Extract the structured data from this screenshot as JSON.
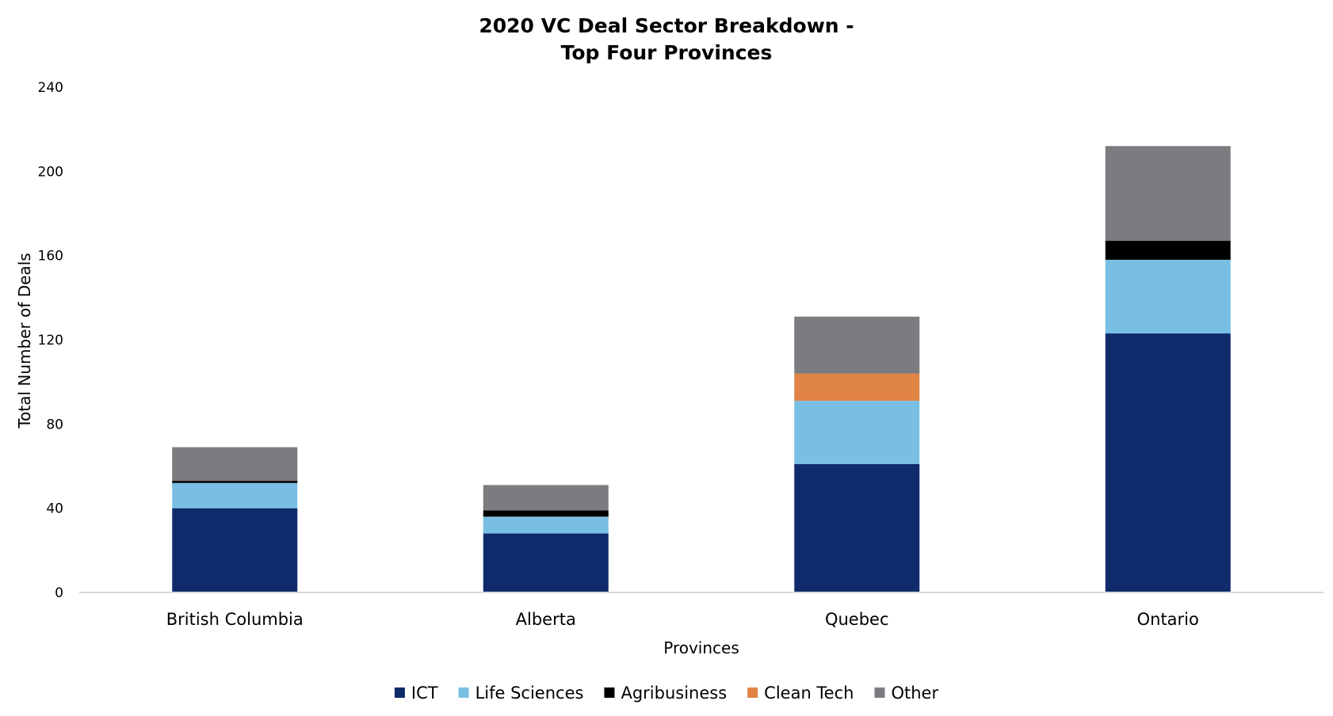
{
  "chart_data": {
    "type": "bar",
    "stacked": true,
    "title_line1": "2020 VC Deal Sector Breakdown -",
    "title_line2": "Top Four Provinces",
    "xlabel": "Provinces",
    "ylabel": "Total Number of Deals",
    "ylim": [
      0,
      240
    ],
    "yticks": [
      "0",
      "40",
      "80",
      "120",
      "160",
      "200",
      "240"
    ],
    "grid": false,
    "legend_position": "bottom",
    "categories": [
      "British Columbia",
      "Alberta",
      "Quebec",
      "Ontario"
    ],
    "series": [
      {
        "name": "ICT",
        "color": "#0f2b6b",
        "values": [
          40,
          28,
          61,
          123
        ]
      },
      {
        "name": "Life Sciences",
        "color": "#78bfe3",
        "values": [
          12,
          8,
          30,
          35
        ]
      },
      {
        "name": "Agribusiness",
        "color": "#000000",
        "values": [
          1,
          3,
          0,
          9
        ]
      },
      {
        "name": "Clean Tech",
        "color": "#e08445",
        "values": [
          0,
          0,
          13,
          0
        ]
      },
      {
        "name": "Other",
        "color": "#7b7c80",
        "values": [
          16,
          12,
          27,
          45
        ]
      }
    ]
  }
}
